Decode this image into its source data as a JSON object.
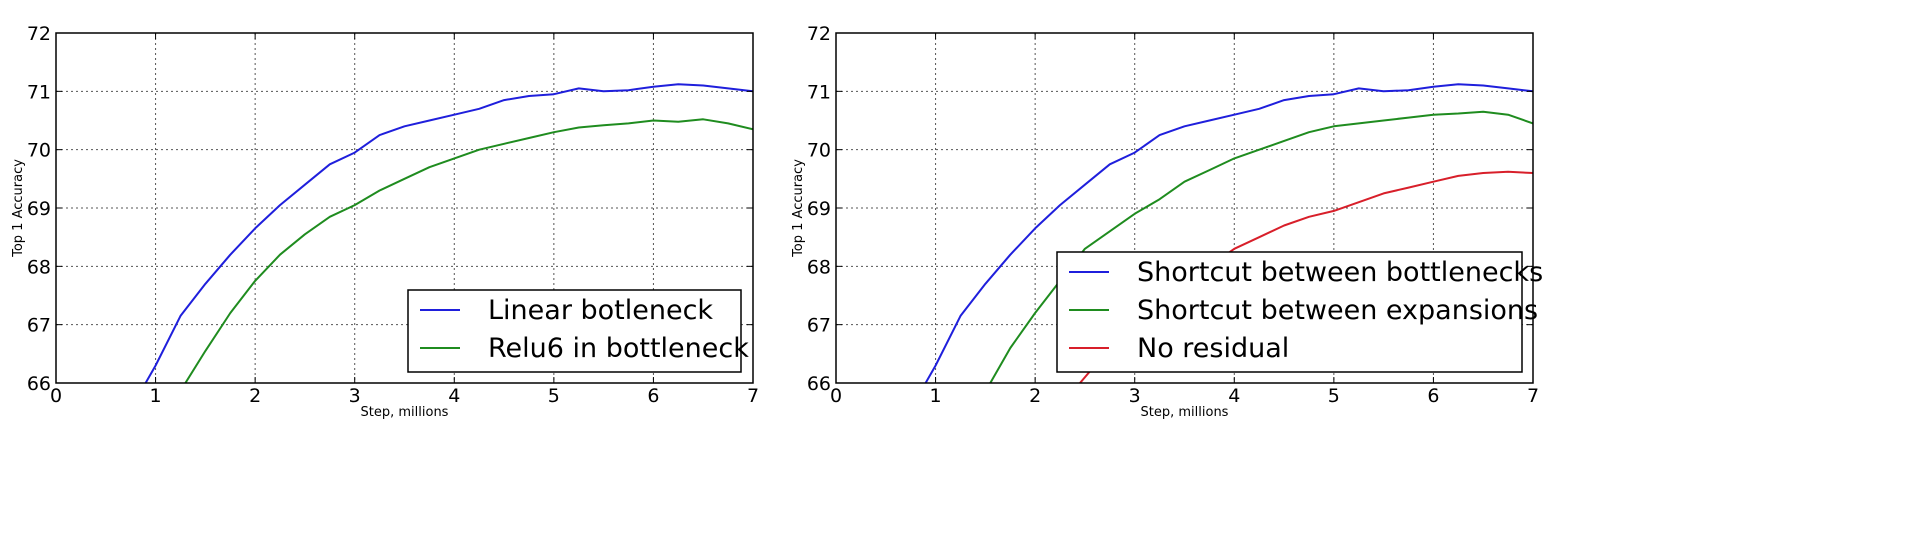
{
  "chart_data": [
    {
      "type": "line",
      "xlabel": "Step, millions",
      "ylabel": "Top 1 Accuracy",
      "xlim": [
        0,
        7
      ],
      "ylim": [
        66,
        72
      ],
      "xticks": [
        "0",
        "1",
        "2",
        "3",
        "4",
        "5",
        "6",
        "7"
      ],
      "yticks": [
        "66",
        "67",
        "68",
        "69",
        "70",
        "71",
        "72"
      ],
      "grid": true,
      "legend_position": "lower-right",
      "series": [
        {
          "name": "Linear botleneck",
          "color": "#1f1fdc",
          "x": [
            0.9,
            1.0,
            1.25,
            1.5,
            1.75,
            2.0,
            2.25,
            2.5,
            2.75,
            3.0,
            3.25,
            3.5,
            3.75,
            4.0,
            4.25,
            4.5,
            4.75,
            5.0,
            5.25,
            5.5,
            5.75,
            6.0,
            6.25,
            6.5,
            6.75,
            7.0
          ],
          "y": [
            66.0,
            66.3,
            67.15,
            67.7,
            68.2,
            68.65,
            69.05,
            69.4,
            69.75,
            69.95,
            70.25,
            70.4,
            70.5,
            70.6,
            70.7,
            70.85,
            70.92,
            70.95,
            71.05,
            71.0,
            71.02,
            71.08,
            71.12,
            71.1,
            71.05,
            71.0
          ]
        },
        {
          "name": "Relu6 in bottleneck",
          "color": "#1f8c1f",
          "x": [
            1.3,
            1.5,
            1.75,
            2.0,
            2.25,
            2.5,
            2.75,
            3.0,
            3.25,
            3.5,
            3.75,
            4.0,
            4.25,
            4.5,
            4.75,
            5.0,
            5.25,
            5.5,
            5.75,
            6.0,
            6.25,
            6.5,
            6.75,
            7.0
          ],
          "y": [
            66.0,
            66.55,
            67.2,
            67.75,
            68.2,
            68.55,
            68.85,
            69.05,
            69.3,
            69.5,
            69.7,
            69.85,
            70.0,
            70.1,
            70.2,
            70.3,
            70.38,
            70.42,
            70.45,
            70.5,
            70.48,
            70.52,
            70.45,
            70.35
          ]
        }
      ]
    },
    {
      "type": "line",
      "xlabel": "Step, millions",
      "ylabel": "Top 1 Accuracy",
      "xlim": [
        0,
        7
      ],
      "ylim": [
        66,
        72
      ],
      "xticks": [
        "0",
        "1",
        "2",
        "3",
        "4",
        "5",
        "6",
        "7"
      ],
      "yticks": [
        "66",
        "67",
        "68",
        "69",
        "70",
        "71",
        "72"
      ],
      "grid": true,
      "legend_position": "lower-right",
      "series": [
        {
          "name": "Shortcut between bottlenecks",
          "color": "#1f1fdc",
          "x": [
            0.9,
            1.0,
            1.25,
            1.5,
            1.75,
            2.0,
            2.25,
            2.5,
            2.75,
            3.0,
            3.25,
            3.5,
            3.75,
            4.0,
            4.25,
            4.5,
            4.75,
            5.0,
            5.25,
            5.5,
            5.75,
            6.0,
            6.25,
            6.5,
            6.75,
            7.0
          ],
          "y": [
            66.0,
            66.3,
            67.15,
            67.7,
            68.2,
            68.65,
            69.05,
            69.4,
            69.75,
            69.95,
            70.25,
            70.4,
            70.5,
            70.6,
            70.7,
            70.85,
            70.92,
            70.95,
            71.05,
            71.0,
            71.02,
            71.08,
            71.12,
            71.1,
            71.05,
            71.0
          ]
        },
        {
          "name": "Shortcut between expansions",
          "color": "#1f8c1f",
          "x": [
            1.55,
            1.75,
            2.0,
            2.25,
            2.5,
            2.75,
            3.0,
            3.25,
            3.5,
            3.75,
            4.0,
            4.25,
            4.5,
            4.75,
            5.0,
            5.25,
            5.5,
            5.75,
            6.0,
            6.25,
            6.5,
            6.75,
            7.0
          ],
          "y": [
            66.0,
            66.6,
            67.2,
            67.75,
            68.3,
            68.6,
            68.9,
            69.15,
            69.45,
            69.65,
            69.85,
            70.0,
            70.15,
            70.3,
            70.4,
            70.45,
            70.5,
            70.55,
            70.6,
            70.62,
            70.65,
            70.6,
            70.45
          ]
        },
        {
          "name": "No residual",
          "color": "#d81f2a",
          "x": [
            2.45,
            2.75,
            3.0,
            3.25,
            3.5,
            3.75,
            4.0,
            4.25,
            4.5,
            4.75,
            5.0,
            5.25,
            5.5,
            5.75,
            6.0,
            6.25,
            6.5,
            6.75,
            7.0
          ],
          "y": [
            66.0,
            66.6,
            67.0,
            67.35,
            67.7,
            68.0,
            68.3,
            68.5,
            68.7,
            68.85,
            68.95,
            69.1,
            69.25,
            69.35,
            69.45,
            69.55,
            69.6,
            69.62,
            69.6
          ]
        }
      ]
    }
  ]
}
